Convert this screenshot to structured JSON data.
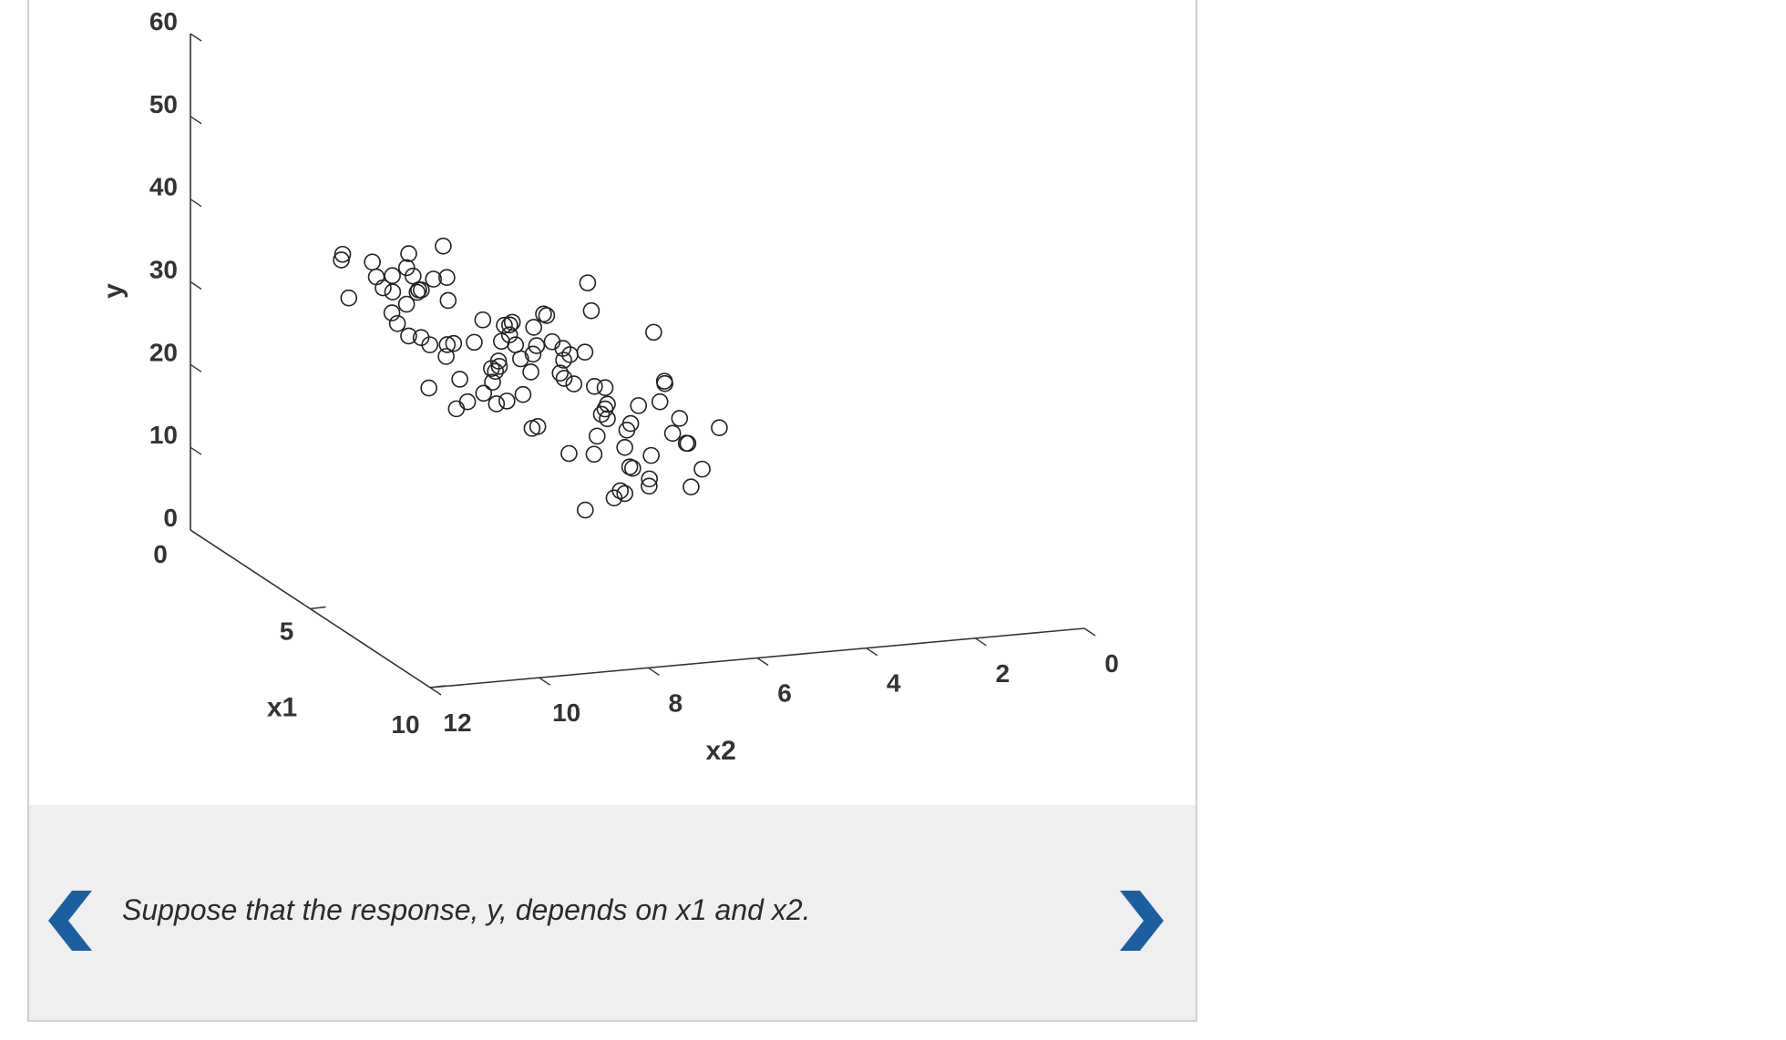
{
  "colors": {
    "arrow": "#1c5fa0",
    "axis": "#333333",
    "marker": "#222222",
    "caption_bg": "#efefef"
  },
  "navigation": {
    "prev_icon": "chevron-left-icon",
    "next_icon": "chevron-right-icon"
  },
  "caption": {
    "text": "Suppose that the response, y, depends on x1 and x2."
  },
  "chart_data": {
    "type": "scatter",
    "projection": "3d",
    "marker": "open-circle",
    "zlabel": "y",
    "xlabel": "x1",
    "ylabel": "x2",
    "z_ticks": [
      "0",
      "10",
      "20",
      "30",
      "40",
      "50",
      "60"
    ],
    "x1_ticks": [
      "0",
      "5",
      "10"
    ],
    "x2_ticks": [
      "12",
      "10",
      "8",
      "6",
      "4",
      "2",
      "0"
    ],
    "zlim": [
      0,
      60
    ],
    "x1lim": [
      0,
      10
    ],
    "x2lim": [
      0,
      12
    ],
    "grid": false,
    "points": [
      [
        4.1,
        8.72,
        21.35
      ],
      [
        5.04,
        6.61,
        23.59
      ],
      [
        4.11,
        9.08,
        33.84
      ],
      [
        5.25,
        9.48,
        31.05
      ],
      [
        5.4,
        8.09,
        29.22
      ],
      [
        3.42,
        9.5,
        38.43
      ],
      [
        4.58,
        9.64,
        24.48
      ],
      [
        4.97,
        8.38,
        22.9
      ],
      [
        4.7,
        7.77,
        30.93
      ],
      [
        6.73,
        6.54,
        15.74
      ],
      [
        6.51,
        6.75,
        16.73
      ],
      [
        5.72,
        7.88,
        31.2
      ],
      [
        5.19,
        8.76,
        27.48
      ],
      [
        5.0,
        9.32,
        22.58
      ],
      [
        3.31,
        9.76,
        31.22
      ],
      [
        2.74,
        10.3,
        32.26
      ],
      [
        3.48,
        8.84,
        25.73
      ],
      [
        4.4,
        8.34,
        25.37
      ],
      [
        5.36,
        8.3,
        28.7
      ],
      [
        6.86,
        5.63,
        16.63
      ],
      [
        6.03,
        6.2,
        17.04
      ],
      [
        6.27,
        6.79,
        18.82
      ],
      [
        3.9,
        9.48,
        34.94
      ],
      [
        3.54,
        9.76,
        30.37
      ],
      [
        3.85,
        7.84,
        28.45
      ],
      [
        5.75,
        6.56,
        12.12
      ],
      [
        3.03,
        9.33,
        27.64
      ],
      [
        4.99,
        7.25,
        15.92
      ],
      [
        4.36,
        7.44,
        31.7
      ],
      [
        4.26,
        6.52,
        31.36
      ],
      [
        4.51,
        8.37,
        21.68
      ],
      [
        6.38,
        6.73,
        21.88
      ],
      [
        3.72,
        9.67,
        37.41
      ],
      [
        6.42,
        7.58,
        12.01
      ],
      [
        4.94,
        7.21,
        27.75
      ],
      [
        3.23,
        10.01,
        35.56
      ],
      [
        6.29,
        6.76,
        20.93
      ],
      [
        5.42,
        7.35,
        25.21
      ],
      [
        5.14,
        8.16,
        23.88
      ],
      [
        6.44,
        7.06,
        13.19
      ],
      [
        2.78,
        10.43,
        37.69
      ],
      [
        5.82,
        6.34,
        22.75
      ],
      [
        4.72,
        6.79,
        35.76
      ],
      [
        6.35,
        6.09,
        26.27
      ],
      [
        4.74,
        7.55,
        32.31
      ],
      [
        5.73,
        7.06,
        19.32
      ],
      [
        5.44,
        7.56,
        29.67
      ],
      [
        5.06,
        6.62,
        21.06
      ],
      [
        5.77,
        6.04,
        31.34
      ],
      [
        3.45,
        8.88,
        39.04
      ],
      [
        3.35,
        8.77,
        34.98
      ],
      [
        3.5,
        9.83,
        34.15
      ],
      [
        3.71,
        9.24,
        27.81
      ],
      [
        6.4,
        6.12,
        26.67
      ],
      [
        3.51,
        7.64,
        29.2
      ],
      [
        4.38,
        7.08,
        25.94
      ],
      [
        3.27,
        10.67,
        38.08
      ],
      [
        4.46,
        8.31,
        26.72
      ],
      [
        3.17,
        9.31,
        35.13
      ],
      [
        5.01,
        8.24,
        29.68
      ],
      [
        4.92,
        6.76,
        15.41
      ],
      [
        4.03,
        6.99,
        23.66
      ],
      [
        4.46,
        7.59,
        18.38
      ],
      [
        5.16,
        6.73,
        20.67
      ],
      [
        3.83,
        7.44,
        23.68
      ],
      [
        5.71,
        7.1,
        25.31
      ],
      [
        3.87,
        9.47,
        29.13
      ],
      [
        4.09,
        8.04,
        30.18
      ],
      [
        6.24,
        6.33,
        13.81
      ],
      [
        4.05,
        8.84,
        24.06
      ],
      [
        6.58,
        5.71,
        13.99
      ],
      [
        4.38,
        8.26,
        25.89
      ],
      [
        3.38,
        9.3,
        33.85
      ],
      [
        4.1,
        8.44,
        31.09
      ],
      [
        6.94,
        5.35,
        21.62
      ],
      [
        6.19,
        6.11,
        23.78
      ],
      [
        4.37,
        8.38,
        24.04
      ],
      [
        3.15,
        9.85,
        33.99
      ],
      [
        4.13,
        7.55,
        17.5
      ],
      [
        3.42,
        9.54,
        32.35
      ],
      [
        6.25,
        7.1,
        24.2
      ],
      [
        4.9,
        7.3,
        24.87
      ],
      [
        4.38,
        8.72,
        29.08
      ],
      [
        3.77,
        9.2,
        35.84
      ],
      [
        5.85,
        5.6,
        20.82
      ],
      [
        4.47,
        8.26,
        29.1
      ],
      [
        6.47,
        5.72,
        19.04
      ],
      [
        5.48,
        8.06,
        30.37
      ],
      [
        5.59,
        6.4,
        14.94
      ],
      [
        4.04,
        7.92,
        30.05
      ],
      [
        6.06,
        5.82,
        19.55
      ],
      [
        3.45,
        10.18,
        37.88
      ],
      [
        3.74,
        9.94,
        36.65
      ],
      [
        3.23,
        8.71,
        26.6
      ],
      [
        3.84,
        8.31,
        21.65
      ],
      [
        3.34,
        9.31,
        33.49
      ],
      [
        6.63,
        5.82,
        19.44
      ],
      [
        5.45,
        7.16,
        29.0
      ],
      [
        5.97,
        6.74,
        12.98
      ],
      [
        5.43,
        6.74,
        20.66
      ]
    ]
  }
}
